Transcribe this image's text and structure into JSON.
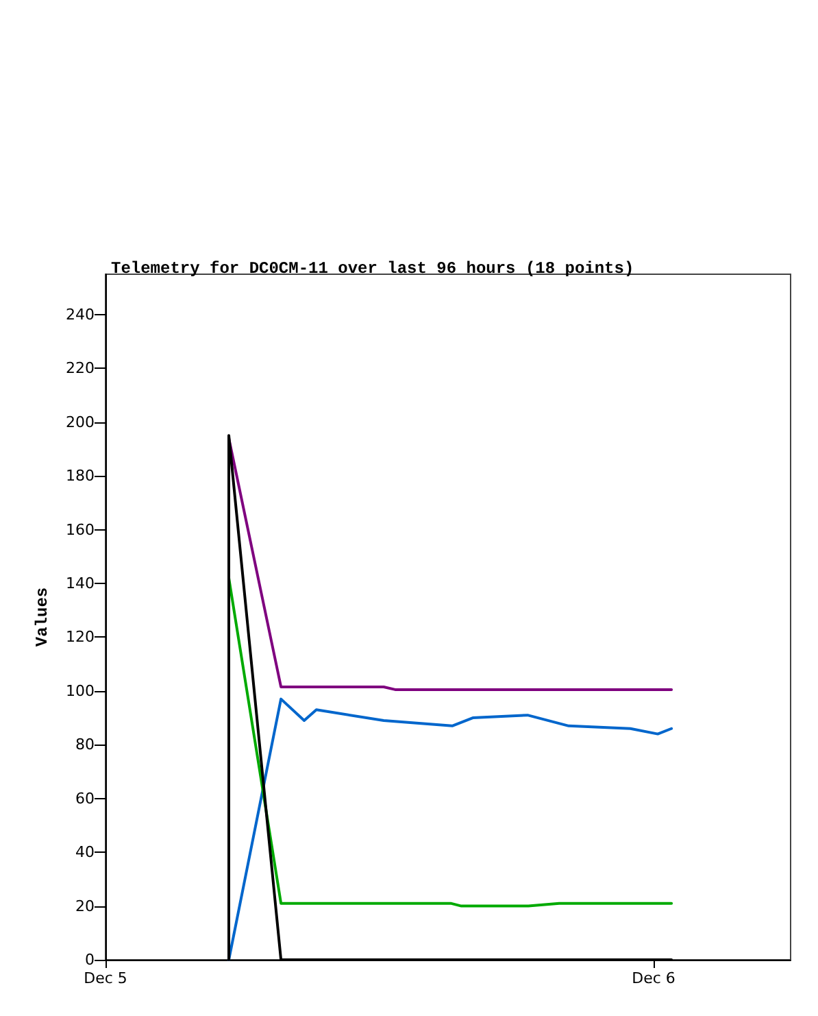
{
  "chart_data": {
    "type": "line",
    "title": "Telemetry for DC0CM-11 over last 96 hours (18 points)",
    "ylabel": "Values",
    "xlim": [
      "--12-05T00:00",
      "--12-06T06:00"
    ],
    "xticks": [
      {
        "value": "--12-05",
        "label": "Dec 5"
      },
      {
        "value": "--12-06",
        "label": "Dec 6"
      }
    ],
    "ylim": [
      0,
      255
    ],
    "yticks": [
      0,
      20,
      40,
      60,
      80,
      100,
      120,
      140,
      160,
      180,
      200,
      220,
      240
    ],
    "grid": false,
    "marker": "none",
    "line_style": "solid",
    "series": [
      {
        "color": "#7f007f",
        "x": [
          "--12-05T05:24",
          "--12-05T07:41",
          "--12-05T12:11",
          "--12-05T12:41",
          "--12-06T00:47"
        ],
        "values": [
          194,
          101.5,
          101.5,
          100.5,
          100.5
        ]
      },
      {
        "color": "#0066cc",
        "x": [
          "--12-05T05:24",
          "--12-05T07:41",
          "--12-05T08:42",
          "--12-05T09:14",
          "--12-05T12:11",
          "--12-05T15:11",
          "--12-05T16:05",
          "--12-05T18:29",
          "--12-05T20:17",
          "--12-05T22:59",
          "--12-06T00:11",
          "--12-06T00:47"
        ],
        "values": [
          0,
          97,
          89,
          93,
          89,
          87,
          90,
          91,
          87,
          86,
          84,
          86
        ]
      },
      {
        "color": "#00aa00",
        "x": [
          "--12-05T05:24",
          "--12-05T07:41",
          "--12-05T15:07",
          "--12-05T15:35",
          "--12-05T18:31",
          "--12-05T19:52",
          "--12-06T00:47"
        ],
        "values": [
          142,
          21,
          21,
          20,
          20,
          21,
          21
        ]
      },
      {
        "color": "#000000",
        "x": [
          "--12-05T05:24",
          "--12-05T05:24",
          "--12-05T07:41",
          "--12-06T00:47"
        ],
        "values": [
          0,
          195,
          0,
          0
        ]
      }
    ]
  }
}
